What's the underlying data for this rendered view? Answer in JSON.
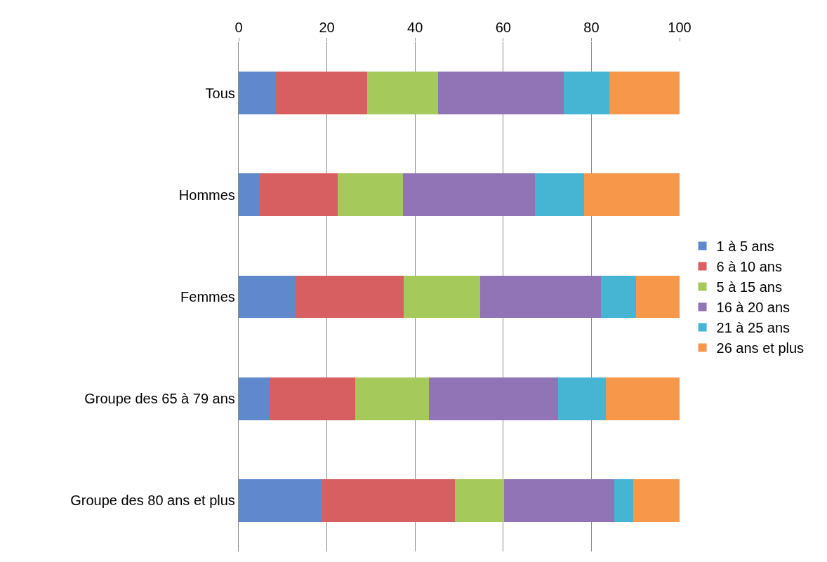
{
  "chart_data": {
    "type": "bar",
    "orientation": "horizontal",
    "stacked": true,
    "categories": [
      "Tous",
      "Hommes",
      "Femmes",
      "Groupe des 65 à 79 ans",
      "Groupe des 80 ans et plus"
    ],
    "series": [
      {
        "name": "1 à 5 ans",
        "color": "#5f89cc",
        "values": [
          8.4,
          4.8,
          12.8,
          6.9,
          18.8
        ]
      },
      {
        "name": "6 à 10 ans",
        "color": "#d75f62",
        "values": [
          20.7,
          17.6,
          24.6,
          19.5,
          30.2
        ]
      },
      {
        "name": "5 à 15 ans",
        "color": "#a5c95a",
        "values": [
          16.1,
          14.8,
          17.4,
          16.7,
          11.2
        ]
      },
      {
        "name": "16 à 20 ans",
        "color": "#9074b5",
        "values": [
          28.6,
          30.0,
          27.3,
          29.3,
          25.0
        ]
      },
      {
        "name": "21 à 25 ans",
        "color": "#45b5d3",
        "values": [
          10.2,
          11.2,
          8.1,
          10.9,
          4.3
        ]
      },
      {
        "name": "26 ans et plus",
        "color": "#f6974a",
        "values": [
          16.0,
          21.6,
          9.8,
          16.7,
          10.5
        ]
      }
    ],
    "xlim": [
      0,
      100
    ],
    "xticks": [
      0,
      20,
      40,
      60,
      80,
      100
    ],
    "grid": "x",
    "legend": "right"
  }
}
